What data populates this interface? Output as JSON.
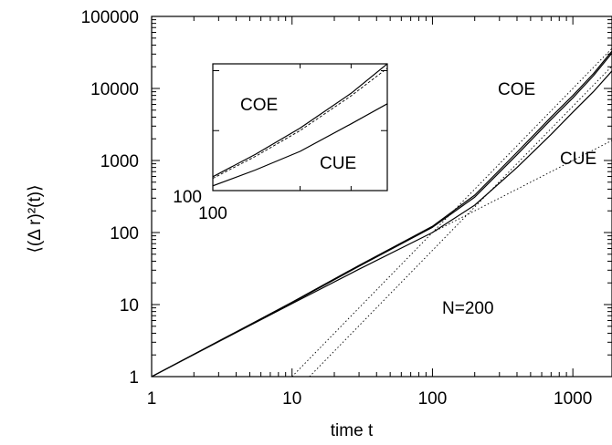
{
  "chart_data": [
    {
      "type": "line",
      "xscale": "log",
      "yscale": "log",
      "xlim": [
        1,
        1900
      ],
      "ylim": [
        1,
        100000
      ],
      "xlabel": "time t",
      "ylabel": "⟨(Δ r)²(t)⟩",
      "xticks": [
        "1",
        "10",
        "100",
        "1000"
      ],
      "yticks": [
        "1",
        "10",
        "100",
        "1000",
        "10000",
        "100000"
      ],
      "grid": false,
      "series": [
        {
          "name": "COE",
          "style": "solid",
          "x": [
            1,
            3,
            10,
            30,
            100,
            200,
            400,
            700,
            1000,
            1400,
            1900
          ],
          "y": [
            1,
            3.1,
            10.8,
            35,
            122,
            330,
            1300,
            4000,
            8000,
            16000,
            33000
          ]
        },
        {
          "name": "COE",
          "style": "solid",
          "x": [
            1,
            3,
            10,
            30,
            100,
            200,
            400,
            700,
            1000,
            1400,
            1900
          ],
          "y": [
            1,
            3.1,
            10.6,
            34,
            118,
            310,
            1200,
            3700,
            7400,
            15000,
            31000
          ]
        },
        {
          "name": "CUE",
          "style": "solid",
          "x": [
            1,
            3,
            10,
            30,
            100,
            200,
            400,
            700,
            1000,
            1400,
            1900
          ],
          "y": [
            1,
            3.05,
            10.3,
            31,
            100,
            240,
            800,
            2300,
            4700,
            9000,
            17500
          ]
        },
        {
          "name": "",
          "style": "dotted",
          "x": [
            10,
            1900
          ],
          "y": [
            1,
            36100
          ]
        },
        {
          "name": "",
          "style": "dotted",
          "x": [
            13.3,
            1900
          ],
          "y": [
            1,
            20400
          ]
        },
        {
          "name": "",
          "style": "dotted",
          "x": [
            100,
            1900
          ],
          "y": [
            100,
            1900
          ]
        }
      ],
      "annotations": [
        "COE",
        "CUE",
        "N=200"
      ]
    },
    {
      "type": "line",
      "role": "inset",
      "xscale": "log",
      "yscale": "log",
      "xticks": [
        "100"
      ],
      "yticks": [
        "100"
      ],
      "series": [
        {
          "name": "COE",
          "style": "solid",
          "x": [
            100,
            140,
            200,
            300,
            400
          ],
          "y": [
            170,
            400,
            1100,
            4200,
            13000
          ]
        },
        {
          "name": "",
          "style": "dashed",
          "x": [
            100,
            140,
            200,
            300,
            400
          ],
          "y": [
            160,
            370,
            1000,
            3800,
            11000
          ]
        },
        {
          "name": "CUE",
          "style": "solid",
          "x": [
            100,
            140,
            200,
            300,
            400
          ],
          "y": [
            120,
            220,
            450,
            1300,
            2800
          ]
        }
      ],
      "annotations": [
        "COE",
        "CUE"
      ]
    }
  ]
}
